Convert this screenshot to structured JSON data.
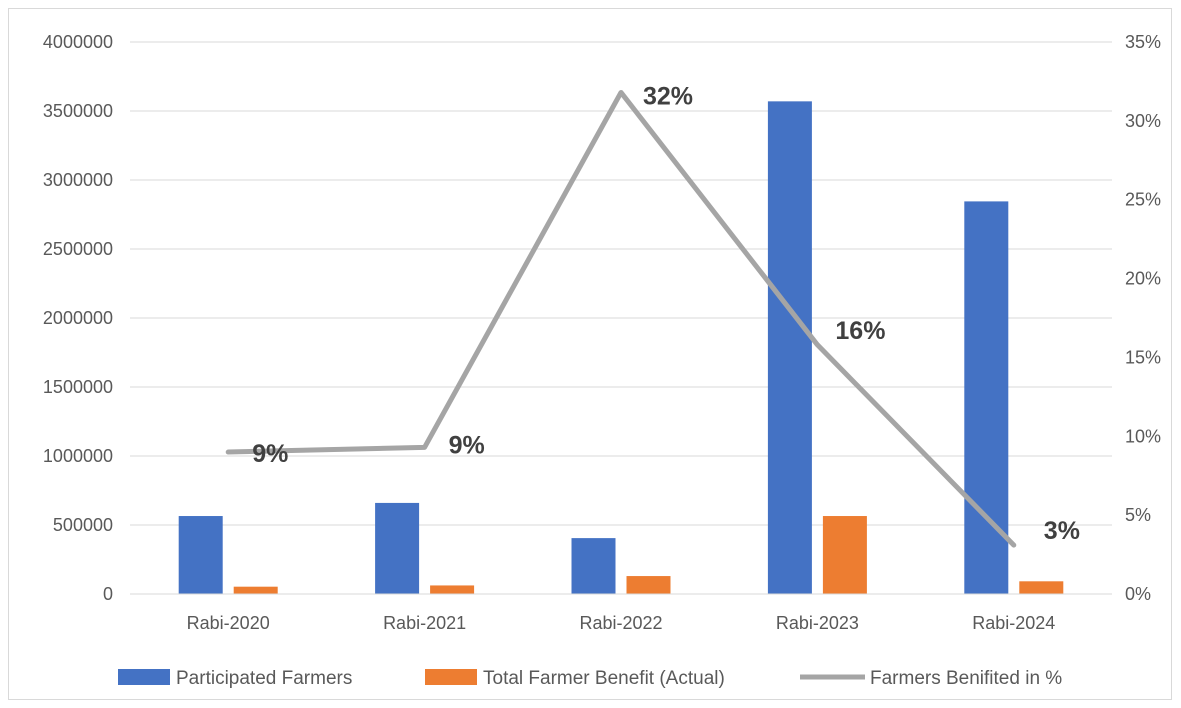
{
  "chart_data": {
    "type": "bar",
    "categories": [
      "Rabi-2020",
      "Rabi-2021",
      "Rabi-2022",
      "Rabi-2023",
      "Rabi-2024"
    ],
    "series": [
      {
        "name": "Participated Farmers",
        "kind": "bar",
        "axis": "left",
        "color": "#4472c4",
        "values": [
          565000,
          660000,
          405000,
          3570000,
          2845000
        ]
      },
      {
        "name": "Total Farmer Benefit (Actual)",
        "kind": "bar",
        "axis": "left",
        "color": "#ed7d31",
        "values": [
          53000,
          62000,
          130000,
          565000,
          92000
        ]
      },
      {
        "name": "Farmers Benifited in %",
        "kind": "line",
        "axis": "right",
        "color": "#a5a5a5",
        "values": [
          9,
          9.3,
          31.8,
          15.8,
          3.1
        ],
        "labels": [
          "9%",
          "9%",
          "32%",
          "16%",
          "3%"
        ]
      }
    ],
    "y_left": {
      "ylim": [
        0,
        4000000
      ],
      "ticks": [
        "0",
        "500000",
        "1000000",
        "1500000",
        "2000000",
        "2500000",
        "3000000",
        "3500000",
        "4000000"
      ]
    },
    "y_right": {
      "ylim": [
        0,
        35
      ],
      "ticks": [
        "0%",
        "5%",
        "10%",
        "15%",
        "20%",
        "25%",
        "30%",
        "35%"
      ]
    },
    "grid": true,
    "legend_position": "bottom"
  }
}
